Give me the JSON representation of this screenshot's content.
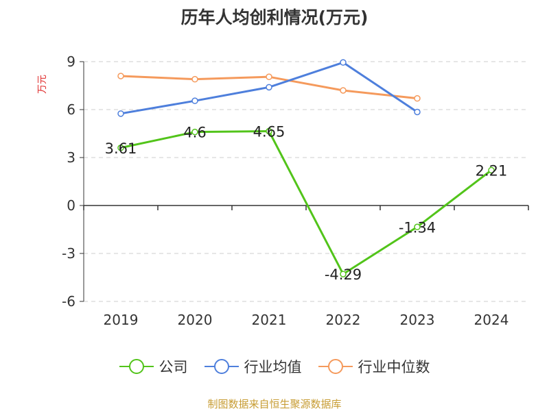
{
  "title": "历年人均创利情况(万元)",
  "footer": "制图数据来自恒生聚源数据库",
  "chart_data": {
    "type": "line",
    "ylabel": "万元",
    "ylim": [
      -6,
      9
    ],
    "yticks": [
      -6,
      -3,
      0,
      3,
      6,
      9
    ],
    "categories": [
      "2019",
      "2020",
      "2021",
      "2022",
      "2023",
      "2024"
    ],
    "grid": true,
    "legend_position": "bottom",
    "series": [
      {
        "name": "公司",
        "color": "#52c41a",
        "values": [
          3.61,
          4.6,
          4.65,
          -4.29,
          -1.34,
          2.21
        ],
        "labels": [
          "3.61",
          "4.6",
          "4.65",
          "-4.29",
          "-1.34",
          "2.21"
        ]
      },
      {
        "name": "行业均值",
        "color": "#4e7fdc",
        "values": [
          5.75,
          6.55,
          7.4,
          8.95,
          5.85,
          null
        ]
      },
      {
        "name": "行业中位数",
        "color": "#f59a5c",
        "values": [
          8.1,
          7.9,
          8.05,
          7.2,
          6.7,
          null
        ]
      }
    ]
  }
}
